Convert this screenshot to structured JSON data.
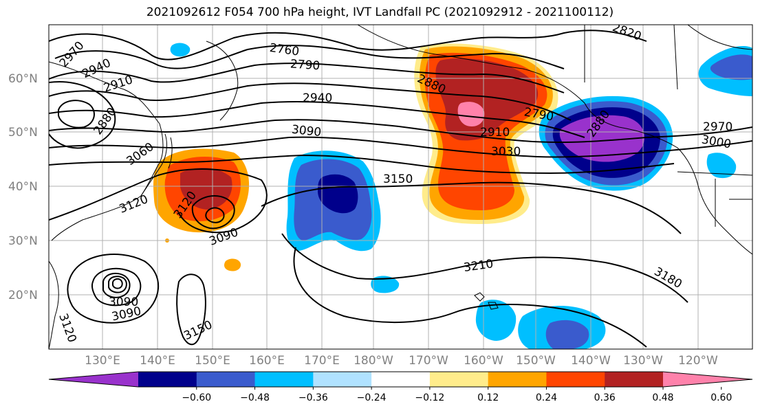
{
  "title": "2021092612 F054 700 hPa height, IVT Landfall PC (2021092912 - 2021100112)",
  "lat_ticks": [
    "60°N",
    "50°N",
    "40°N",
    "30°N",
    "20°N"
  ],
  "lon_ticks": [
    "130°E",
    "140°E",
    "150°E",
    "160°E",
    "170°E",
    "180°W",
    "170°W",
    "160°W",
    "150°W",
    "140°W",
    "130°W",
    "120°W"
  ],
  "colorbar": {
    "colors": [
      "#9932cc",
      "#00008b",
      "#3a5bcd",
      "#00bfff",
      "#b0e2ff",
      "#ffffff",
      "#ffec8b",
      "#ffa500",
      "#ff4500",
      "#b22222",
      "#ff82ab"
    ],
    "labels": [
      "−0.60",
      "−0.48",
      "−0.36",
      "−0.24",
      "−0.12",
      "0.12",
      "0.24",
      "0.36",
      "0.48",
      "0.60"
    ]
  },
  "contour_labels": [
    {
      "text": "2970"
    },
    {
      "text": "2940"
    },
    {
      "text": "2910"
    },
    {
      "text": "2880"
    },
    {
      "text": "3060"
    },
    {
      "text": "3120"
    },
    {
      "text": "3120"
    },
    {
      "text": "3090"
    },
    {
      "text": "3090"
    },
    {
      "text": "3090"
    },
    {
      "text": "3120"
    },
    {
      "text": "3150"
    },
    {
      "text": "2760"
    },
    {
      "text": "2790"
    },
    {
      "text": "2940"
    },
    {
      "text": "3090"
    },
    {
      "text": "3150"
    },
    {
      "text": "2880"
    },
    {
      "text": "2910"
    },
    {
      "text": "3030"
    },
    {
      "text": "2790"
    },
    {
      "text": "2820"
    },
    {
      "text": "2880"
    },
    {
      "text": "2970"
    },
    {
      "text": "3000"
    },
    {
      "text": "3210"
    },
    {
      "text": "3180"
    }
  ]
}
